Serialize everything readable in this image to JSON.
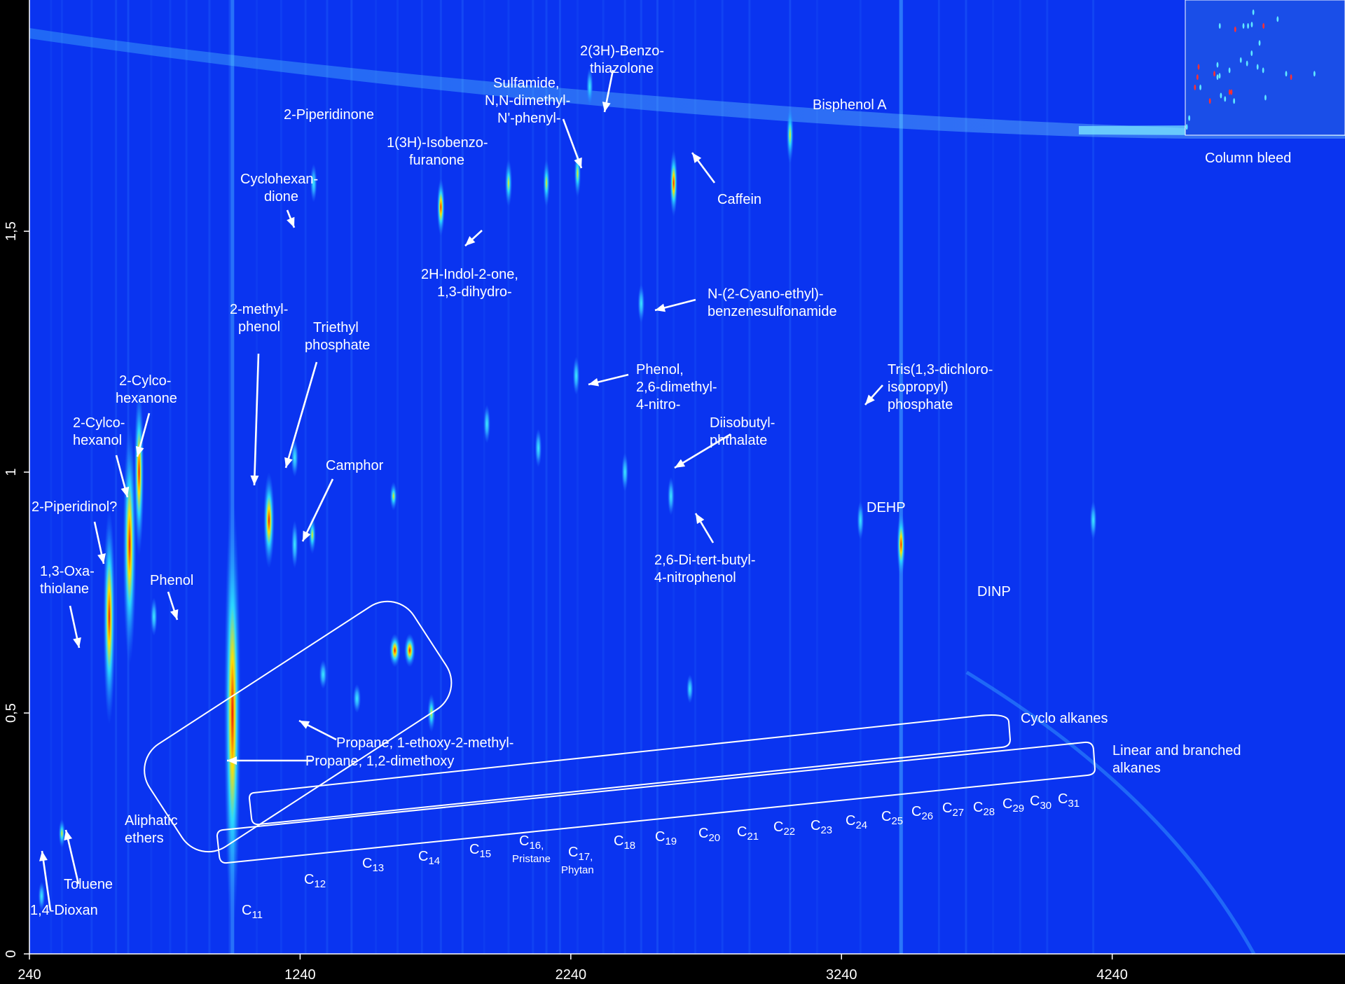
{
  "chart_data": {
    "type": "heatmap",
    "title": "",
    "xlabel": "",
    "ylabel": "",
    "xlim": [
      240,
      5100
    ],
    "ylim": [
      0,
      1.98
    ],
    "x_ticks": [
      "240",
      "1240",
      "2240",
      "3240",
      "4240"
    ],
    "y_ticks": [
      "0",
      "0,5",
      "1",
      "1,5"
    ],
    "colors": {
      "background": "#0a34f0",
      "low": "#1f6dff",
      "mid": "#2ad8ff",
      "high": "#ffe000",
      "peak": "#e81010"
    },
    "peaks": [
      {
        "x": 285,
        "y": 0.12,
        "intensity": 0.5,
        "w": 1.2,
        "h": 0.06
      },
      {
        "x": 360,
        "y": 0.25,
        "intensity": 0.6,
        "w": 1.2,
        "h": 0.06
      },
      {
        "x": 535,
        "y": 0.7,
        "intensity": 1.0,
        "w": 2.2,
        "h": 0.45
      },
      {
        "x": 610,
        "y": 0.85,
        "intensity": 1.0,
        "w": 2.4,
        "h": 0.5
      },
      {
        "x": 645,
        "y": 1.0,
        "intensity": 1.0,
        "w": 1.8,
        "h": 0.35
      },
      {
        "x": 700,
        "y": 0.7,
        "intensity": 0.5,
        "w": 1.2,
        "h": 0.08
      },
      {
        "x": 990,
        "y": 0.5,
        "intensity": 1.0,
        "w": 3.0,
        "h": 0.9
      },
      {
        "x": 1125,
        "y": 0.9,
        "intensity": 1.0,
        "w": 2.0,
        "h": 0.2
      },
      {
        "x": 1220,
        "y": 1.03,
        "intensity": 0.5,
        "w": 1.3,
        "h": 0.08
      },
      {
        "x": 1290,
        "y": 1.6,
        "intensity": 0.45,
        "w": 1.2,
        "h": 0.08
      },
      {
        "x": 1220,
        "y": 0.85,
        "intensity": 0.45,
        "w": 1.2,
        "h": 0.1
      },
      {
        "x": 1285,
        "y": 0.87,
        "intensity": 0.6,
        "w": 1.3,
        "h": 0.08
      },
      {
        "x": 1325,
        "y": 0.58,
        "intensity": 0.55,
        "w": 1.4,
        "h": 0.06
      },
      {
        "x": 1450,
        "y": 0.53,
        "intensity": 0.55,
        "w": 1.4,
        "h": 0.06
      },
      {
        "x": 1590,
        "y": 0.63,
        "intensity": 0.85,
        "w": 2.0,
        "h": 0.07
      },
      {
        "x": 1645,
        "y": 0.63,
        "intensity": 0.95,
        "w": 2.0,
        "h": 0.07
      },
      {
        "x": 1585,
        "y": 0.95,
        "intensity": 0.65,
        "w": 1.3,
        "h": 0.06
      },
      {
        "x": 1725,
        "y": 0.5,
        "intensity": 0.7,
        "w": 1.4,
        "h": 0.08
      },
      {
        "x": 1760,
        "y": 1.55,
        "intensity": 0.85,
        "w": 1.4,
        "h": 0.12
      },
      {
        "x": 2010,
        "y": 1.6,
        "intensity": 0.75,
        "w": 1.3,
        "h": 0.1
      },
      {
        "x": 2150,
        "y": 1.6,
        "intensity": 0.6,
        "w": 1.2,
        "h": 0.1
      },
      {
        "x": 2265,
        "y": 1.62,
        "intensity": 0.6,
        "w": 1.2,
        "h": 0.1
      },
      {
        "x": 2310,
        "y": 1.8,
        "intensity": 0.55,
        "w": 1.2,
        "h": 0.08
      },
      {
        "x": 2620,
        "y": 1.6,
        "intensity": 0.95,
        "w": 1.4,
        "h": 0.14
      },
      {
        "x": 2260,
        "y": 1.2,
        "intensity": 0.5,
        "w": 1.2,
        "h": 0.08
      },
      {
        "x": 2500,
        "y": 1.35,
        "intensity": 0.55,
        "w": 1.2,
        "h": 0.08
      },
      {
        "x": 2440,
        "y": 1.0,
        "intensity": 0.5,
        "w": 1.2,
        "h": 0.08
      },
      {
        "x": 2610,
        "y": 0.95,
        "intensity": 0.5,
        "w": 1.2,
        "h": 0.08
      },
      {
        "x": 1930,
        "y": 1.1,
        "intensity": 0.45,
        "w": 1.2,
        "h": 0.08
      },
      {
        "x": 2120,
        "y": 1.05,
        "intensity": 0.45,
        "w": 1.2,
        "h": 0.08
      },
      {
        "x": 2680,
        "y": 0.55,
        "intensity": 0.45,
        "w": 1.2,
        "h": 0.06
      },
      {
        "x": 3050,
        "y": 1.7,
        "intensity": 0.6,
        "w": 1.3,
        "h": 0.12
      },
      {
        "x": 3460,
        "y": 0.85,
        "intensity": 0.9,
        "w": 1.5,
        "h": 0.14
      },
      {
        "x": 3310,
        "y": 0.9,
        "intensity": 0.4,
        "w": 1.2,
        "h": 0.08
      },
      {
        "x": 4170,
        "y": 0.9,
        "intensity": 0.45,
        "w": 1.2,
        "h": 0.08
      }
    ]
  },
  "annotations": {
    "dioxan": "1,4-Dioxan",
    "toluene": "Toluene",
    "oxathiolane": [
      "1,3-Oxa-",
      "thiolane"
    ],
    "piperidinol": "2-Piperidinol?",
    "cyclohexanol": [
      "2-Cylco-",
      "hexanol"
    ],
    "cyclohexanone": [
      "2-Cylco-",
      "hexanone"
    ],
    "phenol": "Phenol",
    "methylphenol": [
      "2-methyl-",
      "phenol"
    ],
    "triethylphosphate": [
      "Triethyl",
      "phosphate"
    ],
    "camphor": "Camphor",
    "cyclohexandione": [
      "Cyclohexan-",
      "dione"
    ],
    "piperidinone": "2-Piperidinone",
    "isobenzofuranone": [
      "1(3H)-Isobenzo-",
      "furanone"
    ],
    "indolone": [
      "2H-Indol-2-one,",
      "1,3-dihydro-"
    ],
    "sulfamide": [
      "Sulfamide,",
      "N,N-dimethyl-",
      "N'-phenyl-"
    ],
    "benzothiazolone": [
      "2(3H)-Benzo-",
      "thiazolone"
    ],
    "caffein": "Caffein",
    "bisphenol": "Bisphenol A",
    "column_bleed": "Column bleed",
    "cyanoethyl": [
      "N-(2-Cyano-ethyl)-",
      "benzenesulfonamide"
    ],
    "dimethylnitrophenol": [
      "Phenol,",
      "2,6-dimethyl-",
      "4-nitro-"
    ],
    "tcpp": [
      "Tris(1,3-dichloro-",
      "isopropyl)",
      "phosphate"
    ],
    "diisobutylphthalate": [
      "Diisobutyl-",
      "phthalate"
    ],
    "ditertbutyl": [
      "2,6-Di-tert-butyl-",
      "4-nitrophenol"
    ],
    "dehp": "DEHP",
    "dinp": "DINP",
    "propane_ethoxy": "Propane, 1-ethoxy-2-methyl-",
    "propane_dimethoxy": "Propane, 1,2-dimethoxy",
    "aliphatic_ethers": [
      "Aliphatic",
      "ethers"
    ],
    "cyclo_alkanes": "Cyclo alkanes",
    "linear_alkanes": [
      "Linear and branched",
      "alkanes"
    ]
  },
  "alkanes": [
    {
      "c": "C",
      "n": "11",
      "sub": ""
    },
    {
      "c": "C",
      "n": "12",
      "sub": ""
    },
    {
      "c": "C",
      "n": "13",
      "sub": ""
    },
    {
      "c": "C",
      "n": "14",
      "sub": ""
    },
    {
      "c": "C",
      "n": "15",
      "sub": ""
    },
    {
      "c": "C",
      "n": "16,",
      "sub": "Pristane"
    },
    {
      "c": "C",
      "n": "17,",
      "sub": "Phytan"
    },
    {
      "c": "C",
      "n": "18",
      "sub": ""
    },
    {
      "c": "C",
      "n": "19",
      "sub": ""
    },
    {
      "c": "C",
      "n": "20",
      "sub": ""
    },
    {
      "c": "C",
      "n": "21",
      "sub": ""
    },
    {
      "c": "C",
      "n": "22",
      "sub": ""
    },
    {
      "c": "C",
      "n": "23",
      "sub": ""
    },
    {
      "c": "C",
      "n": "24",
      "sub": ""
    },
    {
      "c": "C",
      "n": "25",
      "sub": ""
    },
    {
      "c": "C",
      "n": "26",
      "sub": ""
    },
    {
      "c": "C",
      "n": "27",
      "sub": ""
    },
    {
      "c": "C",
      "n": "28",
      "sub": ""
    },
    {
      "c": "C",
      "n": "29",
      "sub": ""
    },
    {
      "c": "C",
      "n": "30",
      "sub": ""
    },
    {
      "c": "C",
      "n": "31",
      "sub": ""
    }
  ]
}
